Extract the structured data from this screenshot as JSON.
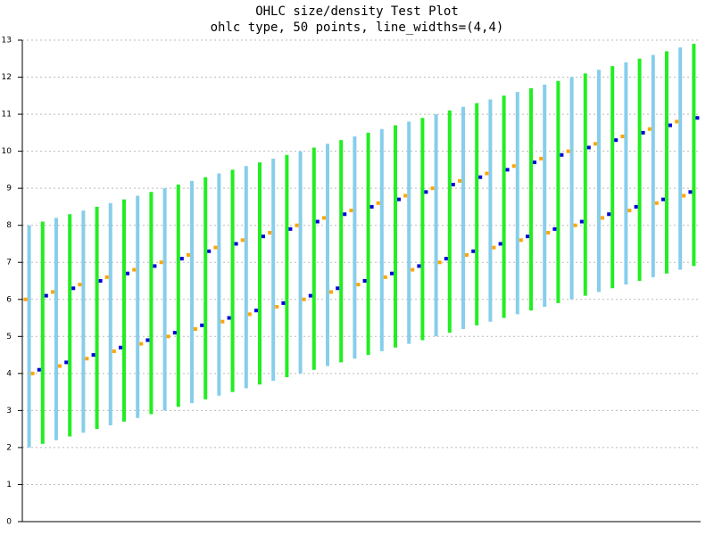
{
  "chart_data": {
    "type": "ohlc",
    "title": "OHLC size/density Test Plot",
    "subtitle": "ohlc type, 50 points, line_widths=(4,4)",
    "open": [
      6,
      4.1,
      6.2,
      4.3,
      6.4,
      4.5,
      6.6,
      4.7,
      6.8,
      4.9,
      7,
      5.1,
      7.2,
      5.3,
      7.4,
      5.5,
      7.6,
      5.7,
      7.8,
      5.9,
      8,
      6.1,
      8.2,
      6.3,
      8.4,
      6.5,
      8.6,
      6.7,
      8.8,
      6.9,
      9,
      7.1,
      9.2,
      7.3,
      9.4,
      7.5,
      9.6,
      7.7,
      9.8,
      7.9,
      10,
      8.1,
      10.2,
      8.3,
      10.4,
      8.5,
      10.6,
      8.7,
      10.8,
      8.9
    ],
    "high": [
      8,
      8.1,
      8.2,
      8.3,
      8.4,
      8.5,
      8.6,
      8.7,
      8.8,
      8.9,
      9,
      9.1,
      9.2,
      9.3,
      9.4,
      9.5,
      9.6,
      9.7,
      9.8,
      9.9,
      10,
      10.1,
      10.2,
      10.3,
      10.4,
      10.5,
      10.6,
      10.7,
      10.8,
      10.9,
      11,
      11.1,
      11.2,
      11.3,
      11.4,
      11.5,
      11.6,
      11.7,
      11.8,
      11.9,
      12,
      12.1,
      12.2,
      12.3,
      12.4,
      12.5,
      12.6,
      12.7,
      12.8,
      12.9
    ],
    "low": [
      2,
      2.1,
      2.2,
      2.3,
      2.4,
      2.5,
      2.6,
      2.7,
      2.8,
      2.9,
      3,
      3.1,
      3.2,
      3.3,
      3.4,
      3.5,
      3.6,
      3.7,
      3.8,
      3.9,
      4,
      4.1,
      4.2,
      4.3,
      4.4,
      4.5,
      4.6,
      4.7,
      4.8,
      4.9,
      5,
      5.1,
      5.2,
      5.3,
      5.4,
      5.5,
      5.6,
      5.7,
      5.8,
      5.9,
      6,
      6.1,
      6.2,
      6.3,
      6.4,
      6.5,
      6.6,
      6.7,
      6.8,
      6.9
    ],
    "close": [
      4,
      6.1,
      4.2,
      6.3,
      4.4,
      6.5,
      4.6,
      6.7,
      4.8,
      6.9,
      5,
      7.1,
      5.2,
      7.3,
      5.4,
      7.5,
      5.6,
      7.7,
      5.8,
      7.9,
      6,
      8.1,
      6.2,
      8.3,
      6.4,
      8.5,
      6.6,
      8.7,
      6.8,
      8.9,
      7,
      9.1,
      7.2,
      9.3,
      7.4,
      9.5,
      7.6,
      9.7,
      7.8,
      9.9,
      8,
      10.1,
      8.2,
      10.3,
      8.4,
      10.5,
      8.6,
      10.7,
      8.8,
      10.9
    ],
    "up_color": "#22ee22",
    "down_color": "#87ceeb",
    "up_tick_color": "#0000dd",
    "down_tick_color": "#ffa500",
    "line_width": 4,
    "ylim": [
      0,
      13
    ],
    "yticks": [
      0,
      1,
      2,
      3,
      4,
      5,
      6,
      7,
      8,
      9,
      10,
      11,
      12,
      13
    ],
    "grid": true
  }
}
